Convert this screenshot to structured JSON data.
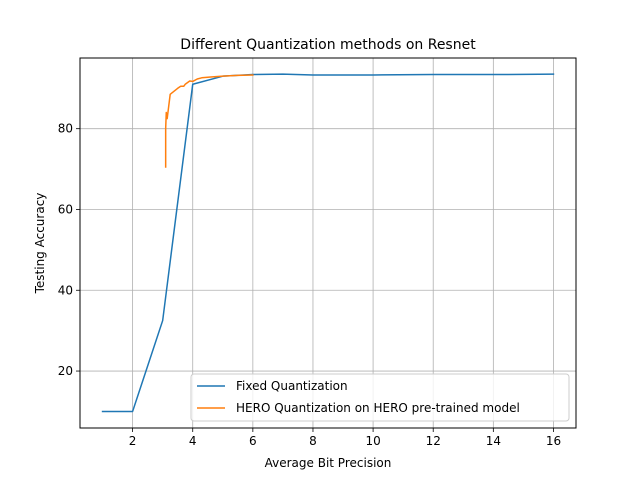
{
  "chart_data": {
    "type": "line",
    "title": "Different Quantization methods on Resnet",
    "xlabel": "Average Bit Precision",
    "ylabel": "Testing Accuracy",
    "xlim": [
      0.25,
      16.75
    ],
    "ylim": [
      5.9,
      97.5
    ],
    "xticks": [
      2,
      4,
      6,
      8,
      10,
      12,
      14,
      16
    ],
    "yticks": [
      20,
      40,
      60,
      80
    ],
    "grid": true,
    "legend_position": "lower-right",
    "series": [
      {
        "name": "Fixed Quantization",
        "color": "#1f77b4",
        "x": [
          1,
          2,
          3,
          4,
          5,
          6,
          7,
          8,
          10,
          12,
          14,
          16
        ],
        "y": [
          10.0,
          10.0,
          32.5,
          91.0,
          93.0,
          93.4,
          93.5,
          93.3,
          93.3,
          93.4,
          93.4,
          93.5
        ]
      },
      {
        "name": "HERO Quantization on HERO pre-trained model",
        "color": "#ff7f0e",
        "x": [
          3.1,
          3.1,
          3.12,
          3.15,
          3.25,
          3.5,
          3.6,
          3.7,
          3.75,
          3.9,
          4.0,
          4.15,
          4.3,
          4.6,
          5.0,
          5.5,
          6.0
        ],
        "y": [
          70.5,
          80.0,
          84.0,
          82.5,
          88.5,
          90.0,
          90.5,
          90.5,
          91.0,
          91.8,
          91.7,
          92.3,
          92.6,
          92.8,
          93.0,
          93.2,
          93.3
        ]
      }
    ]
  }
}
